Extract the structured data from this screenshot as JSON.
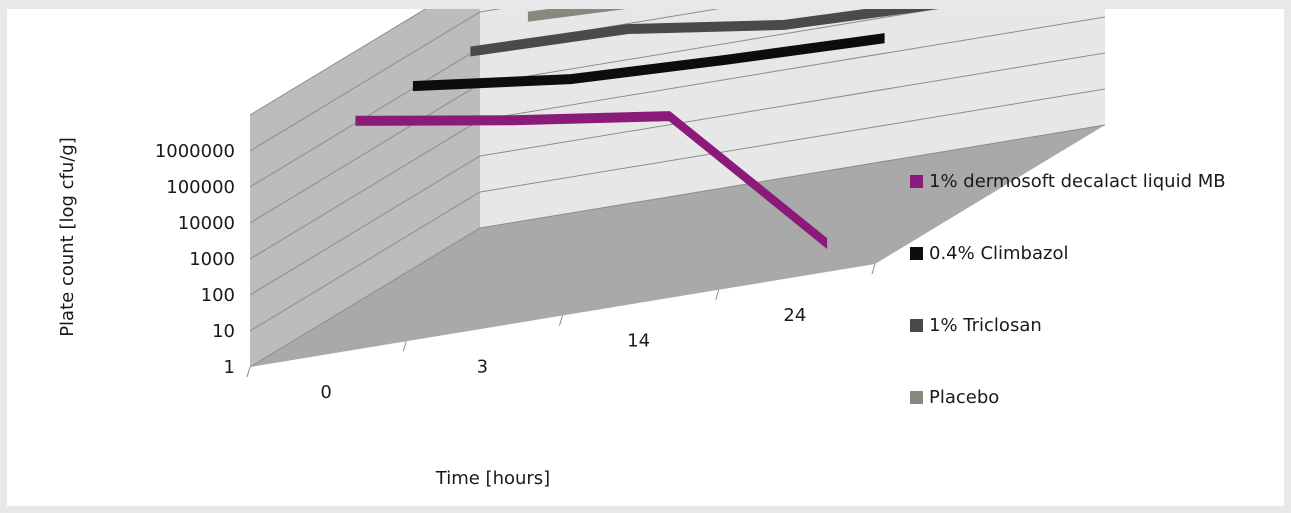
{
  "chart_data": {
    "type": "line",
    "title": "",
    "xlabel": "Time  [hours]",
    "ylabel": "Plate count [log cfu/g]",
    "categories": [
      "0",
      "3",
      "14",
      "24"
    ],
    "y_ticks": [
      "1",
      "10",
      "100",
      "1000",
      "10000",
      "100000",
      "1000000"
    ],
    "y_scale": "log",
    "ylim": [
      1,
      10000000
    ],
    "legend_position": "right",
    "grid": true,
    "series": [
      {
        "name": "1% dermosoft decalact liquid MB",
        "color": "#8b1a7a",
        "values": [
          1000000,
          200000,
          50000,
          3
        ]
      },
      {
        "name": "0.4% Climbazol",
        "color": "#0d0d0d",
        "values": [
          1000000,
          300000,
          200000,
          150000
        ]
      },
      {
        "name": "1% Triclosan",
        "color": "#4a4a4a",
        "values": [
          1000000,
          800000,
          200000,
          150000
        ]
      },
      {
        "name": "Placebo",
        "color": "#8a8680",
        "values": [
          1000000,
          700000,
          400000,
          300000
        ]
      }
    ]
  }
}
